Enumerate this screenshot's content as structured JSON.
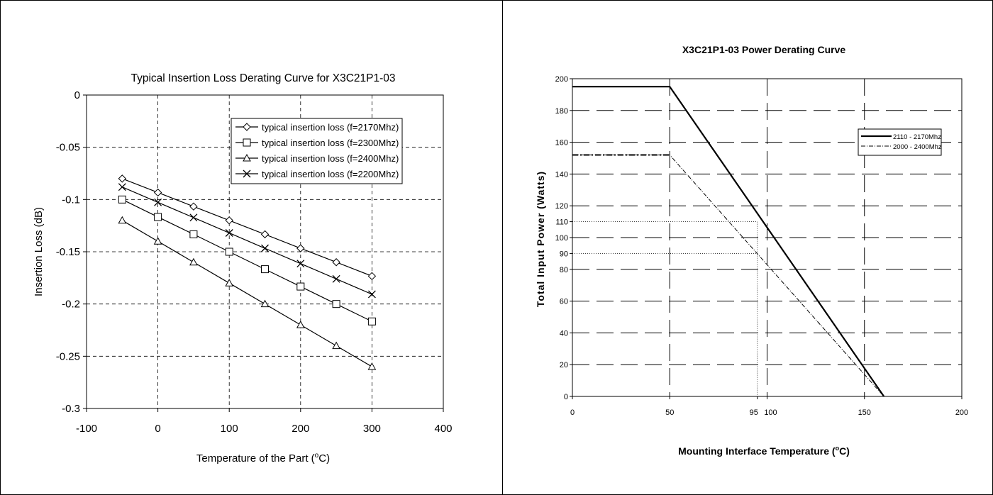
{
  "chart_data": [
    {
      "type": "line",
      "title": "Typical Insertion Loss Derating Curve for X3C21P1-03",
      "xlabel_prefix": "Temperature of the Part (",
      "xlabel_sup": "o",
      "xlabel_suffix": "C)",
      "ylabel": "Insertion Loss (dB)",
      "xlim": [
        -100,
        400
      ],
      "ylim": [
        -0.3,
        0
      ],
      "x_ticks": [
        -100,
        0,
        100,
        200,
        300,
        400
      ],
      "y_ticks": [
        0,
        -0.05,
        -0.1,
        -0.15,
        -0.2,
        -0.25,
        -0.3
      ],
      "x_tick_labels": [
        "-100",
        "0",
        "100",
        "200",
        "300",
        "400"
      ],
      "y_tick_labels": [
        "0",
        "-0.05",
        "-0.1",
        "-0.15",
        "-0.2",
        "-0.25",
        "-0.3"
      ],
      "grid": "dashed",
      "legend_position": "top-right",
      "x": [
        -50,
        0,
        50,
        100,
        150,
        200,
        250,
        300
      ],
      "series": [
        {
          "name": "typical insertion loss (f=2170Mhz)",
          "marker": "diamond",
          "values": [
            -0.08,
            -0.0933,
            -0.1067,
            -0.12,
            -0.1333,
            -0.1467,
            -0.16,
            -0.1733
          ]
        },
        {
          "name": "typical insertion loss (f=2300Mhz)",
          "marker": "square",
          "values": [
            -0.1,
            -0.1167,
            -0.1333,
            -0.15,
            -0.1667,
            -0.1833,
            -0.2,
            -0.2167
          ]
        },
        {
          "name": "typical insertion loss (f=2400Mhz)",
          "marker": "triangle",
          "values": [
            -0.12,
            -0.14,
            -0.16,
            -0.18,
            -0.2,
            -0.22,
            -0.24,
            -0.26
          ]
        },
        {
          "name": "typical insertion loss (f=2200Mhz)",
          "marker": "x",
          "values": [
            -0.088,
            -0.1027,
            -0.1173,
            -0.132,
            -0.1467,
            -0.1613,
            -0.176,
            -0.1907
          ]
        }
      ]
    },
    {
      "type": "line",
      "title": "X3C21P1-03 Power Derating Curve",
      "xlabel_prefix": "Mounting Interface Temperature (",
      "xlabel_sup": "o",
      "xlabel_suffix": "C)",
      "ylabel": "Total Input Power (Watts)",
      "xlim": [
        0,
        200
      ],
      "ylim": [
        0,
        200
      ],
      "x_ticks": [
        0,
        50,
        95,
        100,
        150,
        200
      ],
      "x_tick_labels": [
        "0",
        "50",
        "95",
        "100",
        "150",
        "200"
      ],
      "y_ticks": [
        0,
        20,
        40,
        60,
        80,
        90,
        100,
        110,
        120,
        140,
        160,
        180,
        200
      ],
      "y_tick_labels": [
        "0",
        "20",
        "40",
        "60",
        "80",
        "90",
        "100",
        "110",
        "120",
        "140",
        "160",
        "180",
        "200"
      ],
      "grid": "long-dash",
      "legend_position": "top-right",
      "series": [
        {
          "name": "2110 - 2170Mhz",
          "style": "solid-thick",
          "x": [
            0,
            50,
            160
          ],
          "y": [
            195,
            195,
            0
          ]
        },
        {
          "name": "2000 - 2400Mhz",
          "style": "dash-dot",
          "x": [
            0,
            50,
            160
          ],
          "y": [
            152,
            152,
            0
          ]
        }
      ],
      "reference_lines": [
        {
          "x": 95,
          "y": 110
        },
        {
          "x": 95,
          "y": 90
        }
      ]
    }
  ]
}
